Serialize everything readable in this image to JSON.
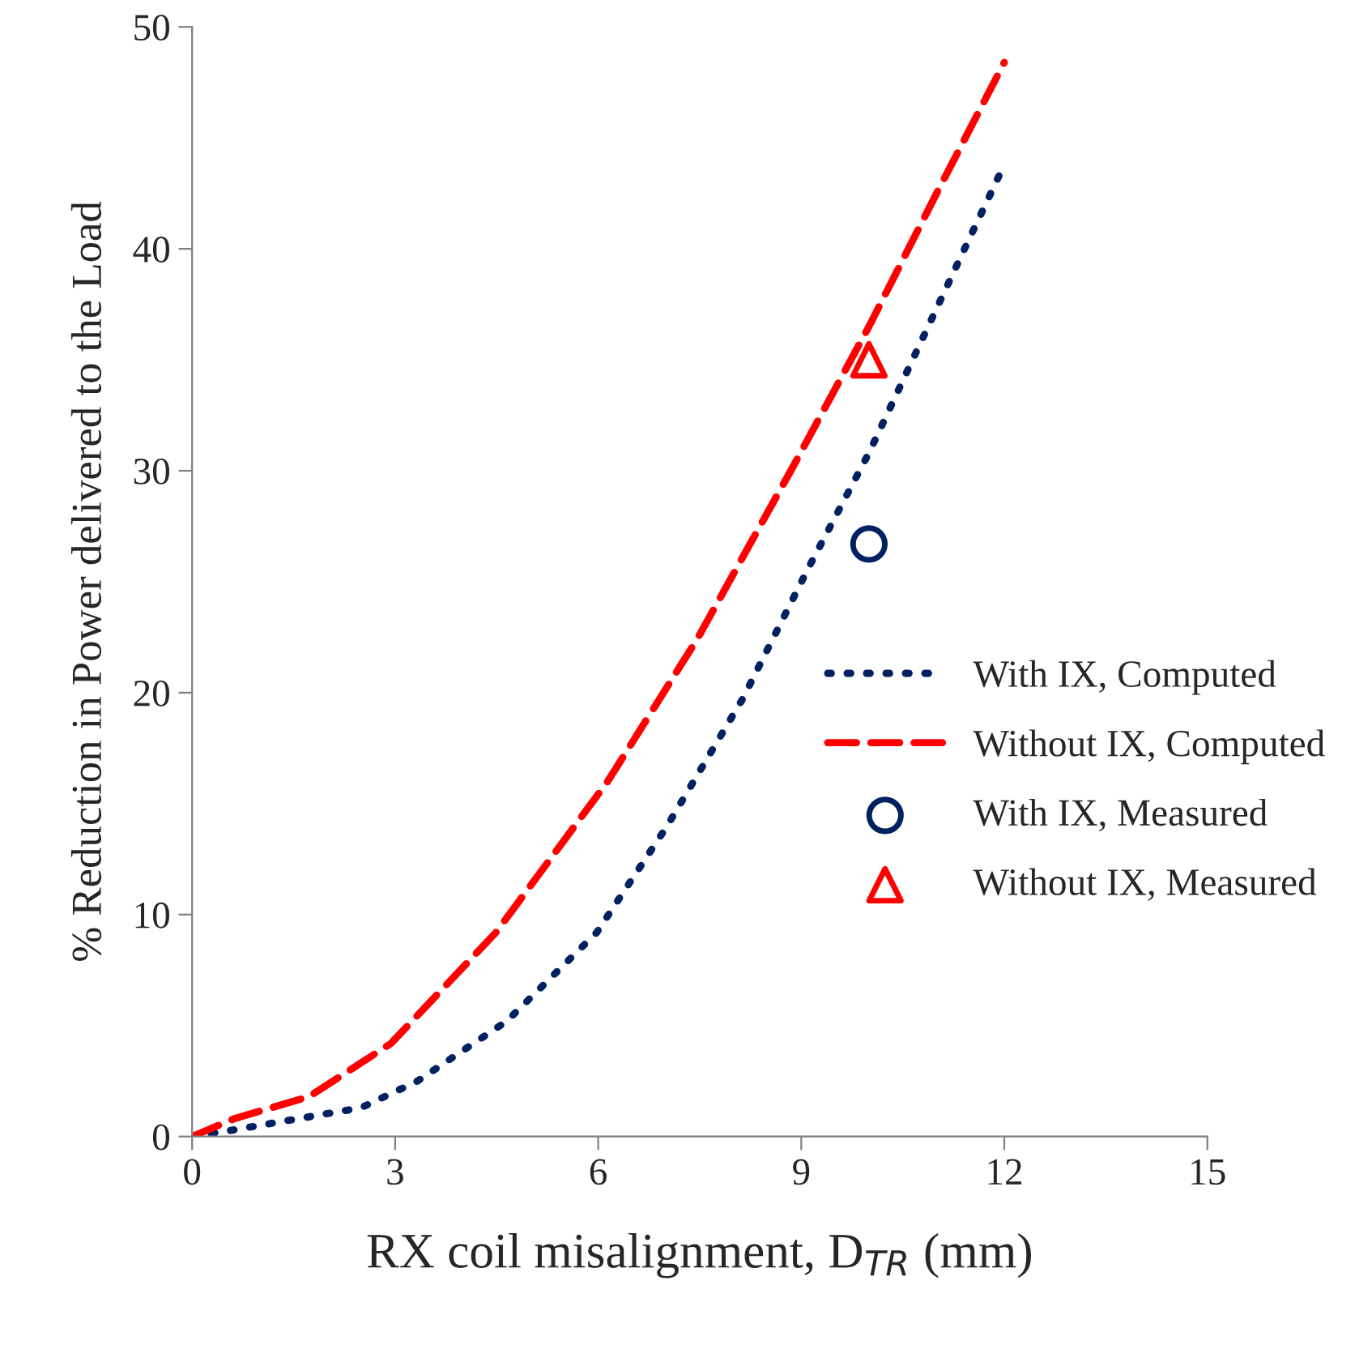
{
  "chart_data": {
    "type": "line",
    "xlabel": "RX coil misalignment, D$_{TR}$ (mm)",
    "ylabel": "% Reduction in Power delivered to the Load",
    "xlim": [
      0,
      15
    ],
    "xticks": [
      0,
      3,
      6,
      9,
      12,
      15
    ],
    "ylim": [
      0,
      50
    ],
    "yticks": [
      0,
      10,
      20,
      30,
      40,
      50
    ],
    "grid": false,
    "legend": "right",
    "series": [
      {
        "name": "With IX, Computed",
        "line_style": "dotted",
        "color": "#002060",
        "x": [
          0,
          0.62,
          2.5,
          3.33,
          4.65,
          5.98,
          7.02,
          8.13,
          9.12,
          10.0,
          11.32,
          12.0
        ],
        "values": [
          0,
          0.3,
          1.3,
          2.5,
          5.2,
          9.2,
          14.0,
          19.7,
          25.7,
          30.8,
          39.4,
          43.8
        ]
      },
      {
        "name": "Without IX, Computed",
        "line_style": "dashed",
        "color": "#ff0000",
        "x": [
          0,
          0.62,
          1.73,
          2.94,
          4.49,
          6.14,
          7.46,
          8.9,
          10.0,
          10.55,
          11.0,
          12.0
        ],
        "values": [
          0,
          0.8,
          1.8,
          4.2,
          9.2,
          16.0,
          22.4,
          30.3,
          36.5,
          39.8,
          42.5,
          48.4
        ]
      },
      {
        "name": "With IX, Measured",
        "type": "scatter",
        "marker": "circle",
        "color": "#002060",
        "x": [
          10
        ],
        "values": [
          26.7
        ]
      },
      {
        "name": "Without IX, Measured",
        "type": "scatter",
        "marker": "triangle",
        "color": "#ff0000",
        "x": [
          10
        ],
        "values": [
          35.0
        ]
      }
    ]
  }
}
